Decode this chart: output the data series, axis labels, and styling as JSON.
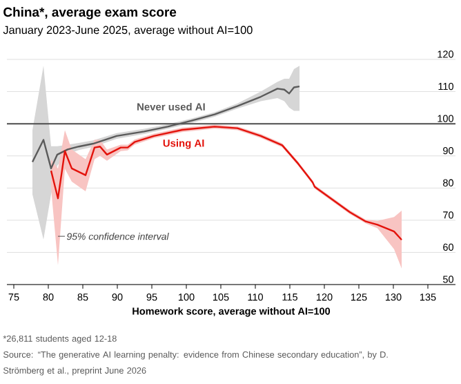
{
  "chart_data": {
    "type": "line",
    "title": "China*, average exam score",
    "subtitle": "January 2023-June 2025, average without AI=100",
    "xlabel": "Homework score, average without AI=100",
    "xlim": [
      74,
      139
    ],
    "xticks": [
      75,
      80,
      85,
      90,
      95,
      100,
      105,
      110,
      115,
      120,
      125,
      130,
      135
    ],
    "ylim": [
      50,
      120
    ],
    "yticks": [
      50,
      60,
      70,
      80,
      90,
      100,
      110,
      120
    ],
    "grid": "y",
    "marker": "none",
    "ref_lines": [
      {
        "axis": "y",
        "value": 100,
        "color": "#4d4d4d"
      }
    ],
    "series": [
      {
        "name": "Never used AI",
        "color": "#5a5a5a",
        "x": [
          77.7,
          79.3,
          80.4,
          81.3,
          82.8,
          84.4,
          86.5,
          89.9,
          93.9,
          97.3,
          100.7,
          104.1,
          107.4,
          110.8,
          113.2,
          114.2,
          114.9,
          115.6,
          116.4
        ],
        "values": [
          88.1,
          95.0,
          86.1,
          90.4,
          92.0,
          92.9,
          93.8,
          96.2,
          97.6,
          99.1,
          100.9,
          102.9,
          105.5,
          108.4,
          110.9,
          110.6,
          109.4,
          111.3,
          111.6
        ],
        "lower": [
          78,
          64,
          78,
          87,
          90.5,
          91.8,
          92.8,
          95.3,
          96.8,
          98.4,
          100.2,
          102.2,
          104.7,
          107,
          108,
          107,
          105,
          104,
          104
        ],
        "upper": [
          98,
          118,
          93,
          93,
          93.5,
          94,
          94.8,
          97.1,
          98.4,
          99.8,
          101.6,
          103.6,
          106.3,
          110,
          113,
          114,
          114,
          117,
          118
        ]
      },
      {
        "name": "Using AI",
        "color": "#e3120b",
        "x": [
          80.4,
          81.4,
          82.4,
          83.4,
          85.4,
          86.7,
          87.5,
          88.5,
          90.5,
          91.5,
          92.5,
          95.3,
          99.4,
          104.1,
          107.4,
          110.8,
          113.9,
          116.2,
          118.3,
          118.6,
          123.7,
          126.0,
          127.7,
          130.1,
          131.2
        ],
        "values": [
          85.4,
          76.8,
          91.5,
          86.1,
          84.0,
          92.6,
          92.9,
          90.4,
          92.6,
          92.6,
          94.3,
          96.2,
          98.1,
          99.1,
          98.6,
          96.2,
          93.3,
          87.6,
          81.8,
          80.4,
          72.5,
          69.6,
          68.6,
          66.5,
          63.9
        ],
        "lower": [
          80,
          56,
          86,
          82,
          79,
          89,
          90,
          88.5,
          91.5,
          91.7,
          93.5,
          95.5,
          97.4,
          98.5,
          98,
          95.6,
          92.7,
          87,
          81.2,
          79.8,
          71.9,
          69,
          67.5,
          61,
          55
        ],
        "upper": [
          89,
          86,
          98,
          92,
          89,
          95,
          95,
          92,
          93.5,
          93.5,
          95.1,
          96.9,
          98.8,
          99.7,
          99.2,
          96.8,
          93.9,
          88.2,
          82.4,
          81,
          73.1,
          70.2,
          69.8,
          71,
          73
        ]
      }
    ],
    "annotations": [
      {
        "text": "95% confidence interval",
        "x": 81.4,
        "y": 65
      },
      "*26,811 students aged 12-18",
      "Source: “The generative AI learning penalty: evidence from Chinese secondary education”, by D. Strömberg et al., preprint June 2026"
    ]
  }
}
